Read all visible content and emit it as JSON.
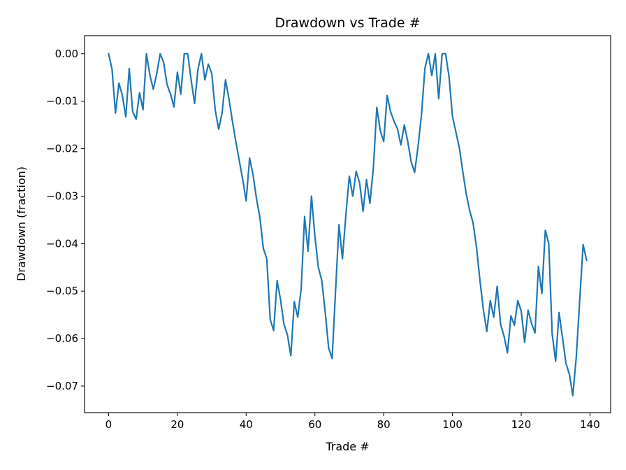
{
  "chart_data": {
    "type": "line",
    "title": "Drawdown vs Trade #",
    "xlabel": "Trade #",
    "ylabel": "Drawdown (fraction)",
    "xlim": [
      -7,
      146
    ],
    "ylim": [
      -0.0756,
      0.0038
    ],
    "xticks": [
      0,
      20,
      40,
      60,
      80,
      100,
      120,
      140
    ],
    "xtick_labels": [
      "0",
      "20",
      "40",
      "60",
      "80",
      "100",
      "120",
      "140"
    ],
    "yticks": [
      0.0,
      -0.01,
      -0.02,
      -0.03,
      -0.04,
      -0.05,
      -0.06,
      -0.07
    ],
    "ytick_labels": [
      "0.00",
      "−0.01",
      "−0.02",
      "−0.03",
      "−0.04",
      "−0.05",
      "−0.06",
      "−0.07"
    ],
    "grid": false,
    "line_color": "#1f77b4",
    "series": [
      {
        "x": [
          0,
          1,
          2,
          3,
          4,
          5,
          6,
          7,
          8,
          9,
          10,
          11,
          12,
          13,
          14,
          15,
          16,
          17,
          18,
          19,
          20,
          21,
          22,
          23,
          24,
          25,
          26,
          27,
          28,
          29,
          30,
          31,
          32,
          33,
          34,
          35,
          36,
          37,
          38,
          39,
          40,
          41,
          42,
          43,
          44,
          45,
          46,
          47,
          48,
          49,
          50,
          51,
          52,
          53,
          54,
          55,
          56,
          57,
          58,
          59,
          60,
          61,
          62,
          63,
          64,
          65,
          66,
          67,
          68,
          69,
          70,
          71,
          72,
          73,
          74,
          75,
          76,
          77,
          78,
          79,
          80,
          81,
          82,
          83,
          84,
          85,
          86,
          87,
          88,
          89,
          90,
          91,
          92,
          93,
          94,
          95,
          96,
          97,
          98,
          99,
          100,
          101,
          102,
          103,
          104,
          105,
          106,
          107,
          108,
          109,
          110,
          111,
          112,
          113,
          114,
          115,
          116,
          117,
          118,
          119,
          120,
          121,
          122,
          123,
          124,
          125,
          126,
          127,
          128,
          129,
          130,
          131,
          132,
          133,
          134,
          135,
          136,
          137,
          138,
          139
        ],
        "values": [
          0.0,
          -0.0033,
          -0.0125,
          -0.0062,
          -0.0088,
          -0.0133,
          -0.0031,
          -0.0122,
          -0.0138,
          -0.0082,
          -0.0118,
          0.0,
          -0.0045,
          -0.0075,
          -0.0042,
          0.0,
          -0.0018,
          -0.0065,
          -0.0085,
          -0.0112,
          -0.0039,
          -0.0085,
          0.0,
          0.0,
          -0.0055,
          -0.0105,
          -0.0032,
          0.0,
          -0.0055,
          -0.0022,
          -0.0042,
          -0.0118,
          -0.0159,
          -0.0125,
          -0.0055,
          -0.0095,
          -0.0142,
          -0.0185,
          -0.0225,
          -0.0265,
          -0.031,
          -0.022,
          -0.0255,
          -0.0305,
          -0.0345,
          -0.041,
          -0.0432,
          -0.056,
          -0.0583,
          -0.0478,
          -0.0518,
          -0.057,
          -0.0592,
          -0.0636,
          -0.0522,
          -0.0555,
          -0.0495,
          -0.0343,
          -0.0416,
          -0.03,
          -0.0385,
          -0.045,
          -0.0478,
          -0.0545,
          -0.062,
          -0.0642,
          -0.05,
          -0.036,
          -0.0432,
          -0.034,
          -0.0258,
          -0.03,
          -0.0248,
          -0.0272,
          -0.0332,
          -0.0265,
          -0.0315,
          -0.024,
          -0.0113,
          -0.0162,
          -0.0185,
          -0.0088,
          -0.0122,
          -0.0142,
          -0.0158,
          -0.0192,
          -0.015,
          -0.0185,
          -0.0228,
          -0.025,
          -0.0195,
          -0.0128,
          -0.003,
          0.0,
          -0.0046,
          0.0,
          -0.0095,
          0.0,
          0.0,
          -0.0048,
          -0.0132,
          -0.0165,
          -0.0198,
          -0.0248,
          -0.0295,
          -0.033,
          -0.0357,
          -0.0408,
          -0.0478,
          -0.054,
          -0.0585,
          -0.052,
          -0.0555,
          -0.049,
          -0.057,
          -0.0595,
          -0.063,
          -0.0552,
          -0.0572,
          -0.052,
          -0.0542,
          -0.0608,
          -0.054,
          -0.0568,
          -0.0588,
          -0.0448,
          -0.0505,
          -0.0372,
          -0.04,
          -0.059,
          -0.0648,
          -0.0545,
          -0.0598,
          -0.0652,
          -0.0675,
          -0.072,
          -0.064,
          -0.052,
          -0.0402,
          -0.0435
        ]
      }
    ]
  }
}
